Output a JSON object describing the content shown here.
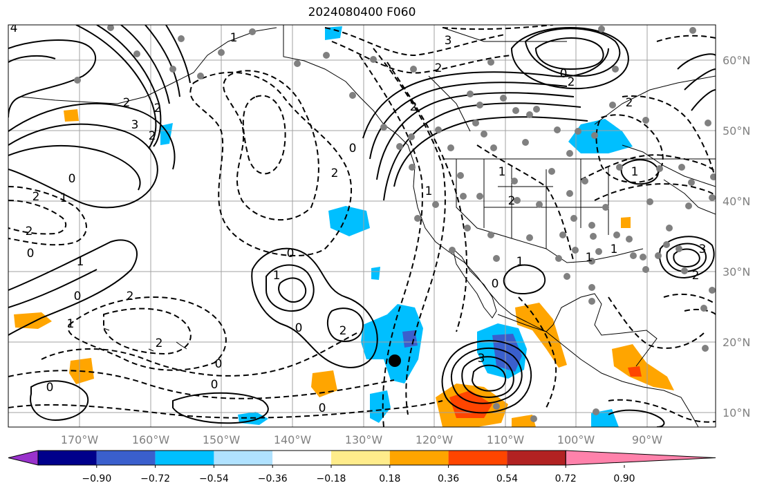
{
  "title": "2024080400 F060",
  "map": {
    "lon_labels": [
      "170°W",
      "160°W",
      "150°W",
      "140°W",
      "130°W",
      "120°W",
      "110°W",
      "100°W",
      "90°W"
    ],
    "lat_labels": [
      "60°N",
      "50°N",
      "40°N",
      "30°N",
      "20°N",
      "10°N"
    ],
    "contour_labels": [
      "4",
      "1",
      "2",
      "3",
      "2",
      "2",
      "0",
      "0",
      "2",
      "1",
      "2",
      "2",
      "0",
      "1",
      "0",
      "2",
      "1",
      "2",
      "0",
      "2",
      "3",
      "2",
      "0",
      "2",
      "1",
      "1",
      "2",
      "0",
      "1",
      "3",
      "0",
      "2",
      "1",
      "0",
      "0",
      "0",
      "0",
      "1",
      "2",
      "1",
      "3",
      "2",
      "1"
    ]
  },
  "colorbar": {
    "tick_labels": [
      "−0.90",
      "−0.72",
      "−0.54",
      "−0.36",
      "−0.18",
      "0.18",
      "0.36",
      "0.54",
      "0.72",
      "0.90"
    ],
    "colors": [
      "#9932cc",
      "#00008b",
      "#3a5fcd",
      "#00bfff",
      "#b0e2ff",
      "#ffffff",
      "#ffec8b",
      "#ffa500",
      "#ff4500",
      "#b22222",
      "#ff82ab"
    ]
  },
  "colors": {
    "contour": "#000000",
    "station": "#808080",
    "grid": "#a0a0a0",
    "coast": "#000000"
  }
}
